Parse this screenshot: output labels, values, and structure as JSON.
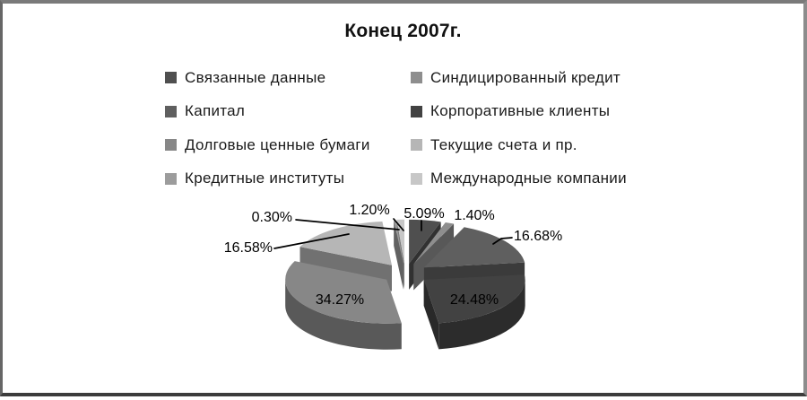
{
  "chart_data": {
    "type": "pie",
    "title": "Конец 2007г.",
    "unit": "%",
    "three_d": true,
    "exploded": true,
    "start_angle": "12-oclock",
    "direction": "clockwise",
    "legend_position": "top, two columns",
    "series": [
      {
        "name": "Связанные данные",
        "value": 5.09,
        "label": "5.09%",
        "color": "#4f4f4f"
      },
      {
        "name": "Синдицированный кредит",
        "value": 1.4,
        "label": "1.40%",
        "color": "#8e8e8e"
      },
      {
        "name": "Капитал",
        "value": 16.68,
        "label": "16.68%",
        "color": "#5f5f5f"
      },
      {
        "name": "Корпоративные клиенты",
        "value": 24.48,
        "label": "24.48%",
        "color": "#424242"
      },
      {
        "name": "Долговые ценные бумаги",
        "value": 34.27,
        "label": "34.27%",
        "color": "#878787"
      },
      {
        "name": "Текущие счета и пр.",
        "value": 16.58,
        "label": "16.58%",
        "color": "#b6b6b6"
      },
      {
        "name": "Кредитные институты",
        "value": 0.3,
        "label": "0.30%",
        "color": "#9c9c9c"
      },
      {
        "name": "Международные компании",
        "value": 1.2,
        "label": "1.20%",
        "color": "#c7c7c7"
      }
    ]
  }
}
